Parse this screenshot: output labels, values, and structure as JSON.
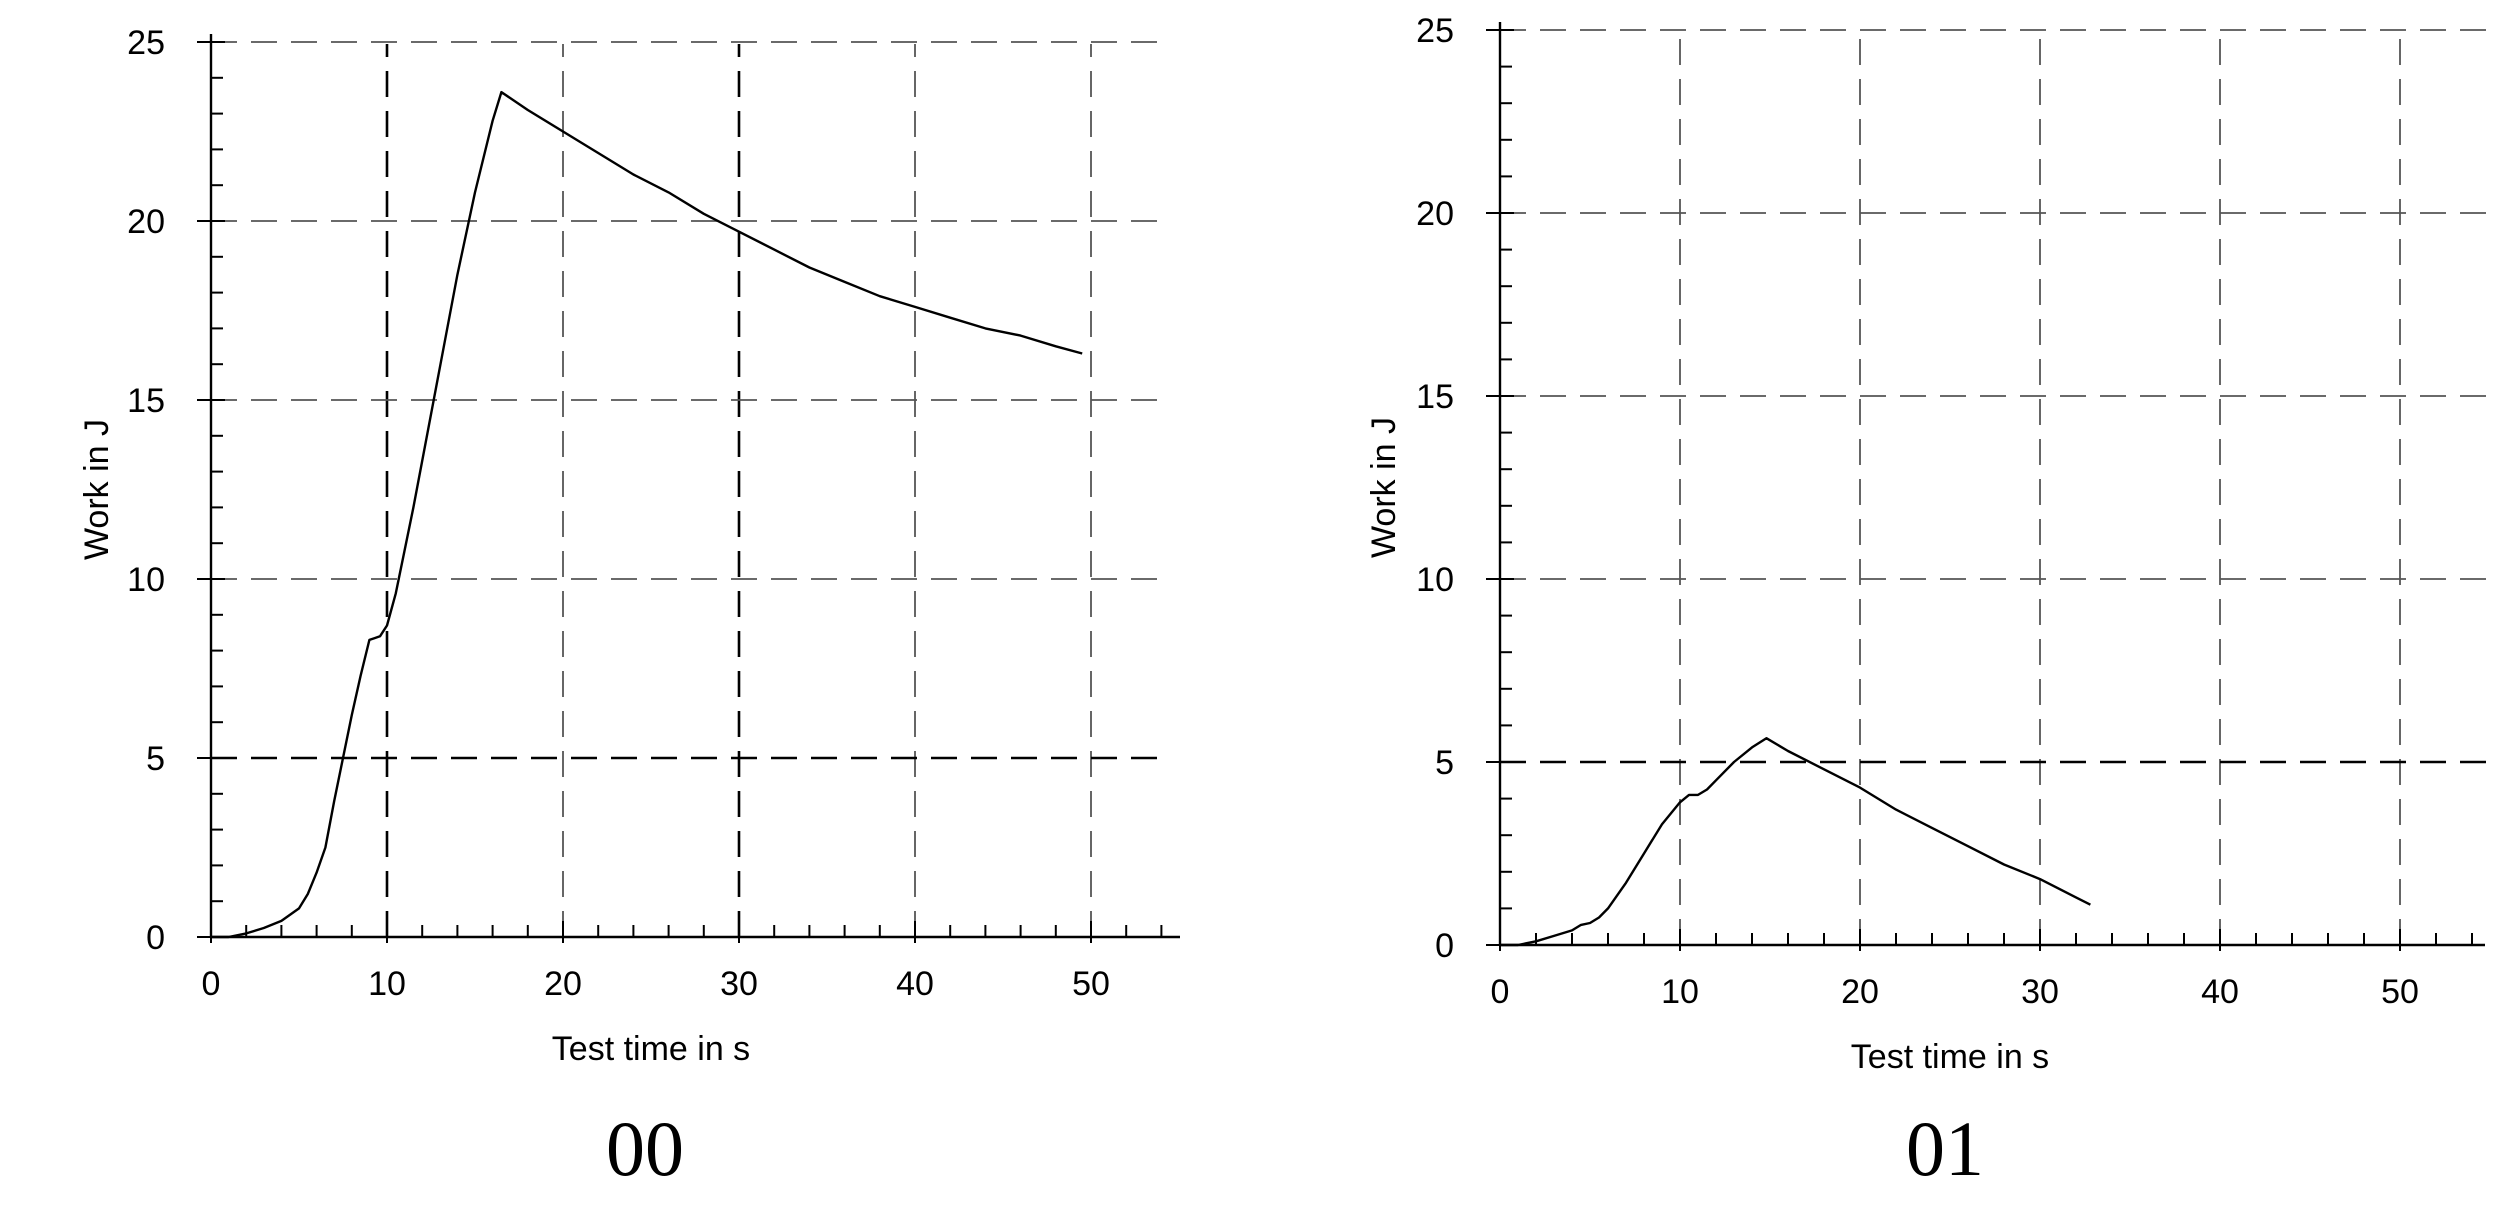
{
  "chart_data": [
    {
      "type": "line",
      "panel_label": "00",
      "xlabel": "Test time in s",
      "ylabel": "Work in J",
      "xlim": [
        0,
        55
      ],
      "ylim": [
        0,
        25
      ],
      "x_ticks": [
        0,
        10,
        20,
        30,
        40,
        50
      ],
      "y_ticks": [
        0,
        5,
        10,
        15,
        20,
        25
      ],
      "grid": true,
      "series": [
        {
          "x": [
            0,
            1,
            2,
            3,
            4,
            5,
            5.5,
            6,
            6.5,
            7,
            7.5,
            8,
            8.5,
            9,
            9.3,
            9.6,
            10,
            10.5,
            11,
            11.5,
            12,
            13,
            14,
            15,
            16,
            16.5,
            18,
            20,
            22,
            24,
            26,
            28,
            30,
            32,
            34,
            36,
            38,
            40,
            42,
            44,
            46,
            48,
            49.5
          ],
          "y": [
            0,
            0,
            0.1,
            0.25,
            0.45,
            0.8,
            1.2,
            1.8,
            2.5,
            3.8,
            5.0,
            6.2,
            7.3,
            8.3,
            8.35,
            8.4,
            8.7,
            9.6,
            10.8,
            12.0,
            13.3,
            15.9,
            18.5,
            20.8,
            22.8,
            23.6,
            23.1,
            22.5,
            21.9,
            21.3,
            20.8,
            20.2,
            19.7,
            19.2,
            18.7,
            18.3,
            17.9,
            17.6,
            17.3,
            17.0,
            16.8,
            16.5,
            16.3
          ]
        }
      ]
    },
    {
      "type": "line",
      "panel_label": "01",
      "xlabel": "Test time in s",
      "ylabel": "Work in J",
      "xlim": [
        0,
        55
      ],
      "ylim": [
        0,
        25
      ],
      "x_ticks": [
        0,
        10,
        20,
        30,
        40,
        50
      ],
      "y_ticks": [
        0,
        5,
        10,
        15,
        20,
        25
      ],
      "grid": true,
      "series": [
        {
          "x": [
            0,
            1,
            2,
            3,
            4,
            4.5,
            5,
            5.5,
            6,
            7,
            8,
            9,
            10,
            10.5,
            11,
            11.5,
            12,
            13,
            14,
            14.8,
            16,
            18,
            20,
            22,
            24,
            26,
            28,
            30,
            32,
            32.8
          ],
          "y": [
            0,
            0,
            0.1,
            0.25,
            0.4,
            0.55,
            0.6,
            0.75,
            1.0,
            1.7,
            2.5,
            3.3,
            3.9,
            4.1,
            4.1,
            4.25,
            4.5,
            5.0,
            5.4,
            5.65,
            5.3,
            4.8,
            4.3,
            3.7,
            3.2,
            2.7,
            2.2,
            1.8,
            1.3,
            1.1
          ]
        }
      ]
    }
  ]
}
